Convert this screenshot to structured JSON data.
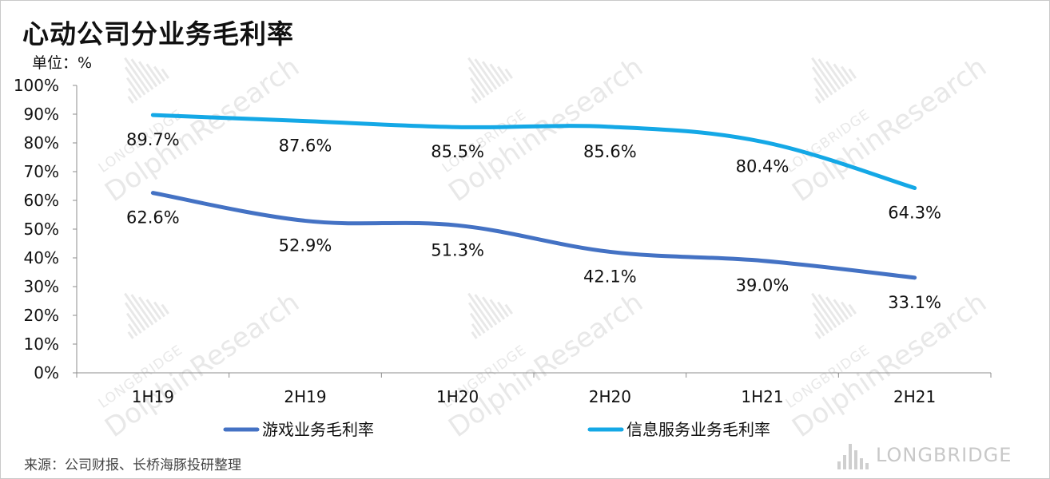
{
  "title": "心动公司分业务毛利率",
  "unit_label": "单位：%",
  "source": "来源：公司财报、长桥海豚投研整理",
  "watermark": {
    "brand": "LONGBRIDGE",
    "name": "DolphinResearch",
    "color": "#d6d6d6"
  },
  "chart_data": {
    "type": "line",
    "categories": [
      "1H19",
      "2H19",
      "1H20",
      "2H20",
      "1H21",
      "2H21"
    ],
    "ylim": [
      0,
      100
    ],
    "yticks": [
      0,
      10,
      20,
      30,
      40,
      50,
      60,
      70,
      80,
      90,
      100
    ],
    "ytick_labels": [
      "0%",
      "10%",
      "20%",
      "30%",
      "40%",
      "50%",
      "60%",
      "70%",
      "80%",
      "90%",
      "100%"
    ],
    "grid": false,
    "legend_position": "bottom",
    "series": [
      {
        "name": "游戏业务毛利率",
        "color": "#4472C4",
        "values": [
          62.6,
          52.9,
          51.3,
          42.1,
          39.0,
          33.1
        ],
        "labels": [
          "62.6%",
          "52.9%",
          "51.3%",
          "42.1%",
          "39.0%",
          "33.1%"
        ]
      },
      {
        "name": "信息服务业务毛利率",
        "color": "#14A8E6",
        "values": [
          89.7,
          87.6,
          85.5,
          85.6,
          80.4,
          64.3
        ],
        "labels": [
          "89.7%",
          "87.6%",
          "85.5%",
          "85.6%",
          "80.4%",
          "64.3%"
        ]
      }
    ]
  }
}
